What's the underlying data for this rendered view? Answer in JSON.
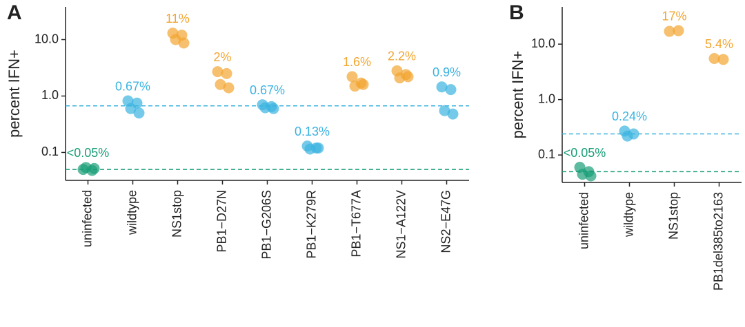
{
  "chart_data": [
    {
      "type": "strip",
      "title": "A",
      "ylabel": "percent IFN+",
      "log_y": true,
      "ylim": [
        0.032,
        38
      ],
      "yticks": [
        0.1,
        {
          "value": 1,
          "label": "1.0"
        },
        {
          "value": 10,
          "label": "10.0"
        }
      ],
      "groups": [
        {
          "category": "uninfected",
          "color": "#1a9e77",
          "values": [
            0.05,
            0.048,
            0.054,
            0.052
          ],
          "annotation": "<0.05%"
        },
        {
          "category": "wildtype",
          "color": "#3bb3e0",
          "values": [
            0.82,
            0.75,
            0.6,
            0.5
          ],
          "annotation": "0.67%"
        },
        {
          "category": "NS1stop",
          "color": "#f2a530",
          "values": [
            13,
            12,
            10,
            8.7
          ],
          "annotation": "11%"
        },
        {
          "category": "PB1−D27N",
          "color": "#f2a530",
          "values": [
            2.7,
            2.5,
            1.6,
            1.4
          ],
          "annotation": "2%"
        },
        {
          "category": "PB1−G206S",
          "color": "#3bb3e0",
          "values": [
            0.7,
            0.65,
            0.62,
            0.6
          ],
          "annotation": "0.67%"
        },
        {
          "category": "PB1−K279R",
          "color": "#3bb3e0",
          "values": [
            0.13,
            0.12,
            0.115,
            0.12
          ],
          "annotation": "0.13%"
        },
        {
          "category": "PB1−T677A",
          "color": "#f2a530",
          "values": [
            2.2,
            1.7,
            1.5,
            1.6
          ],
          "annotation": "1.6%"
        },
        {
          "category": "NS1−A122V",
          "color": "#f2a530",
          "values": [
            2.8,
            2.4,
            2.1,
            2.2
          ],
          "annotation": "2.2%"
        },
        {
          "category": "NS2−E47G",
          "color": "#3bb3e0",
          "values": [
            1.45,
            1.3,
            0.55,
            0.48
          ],
          "annotation": "0.9%"
        }
      ],
      "hlines": [
        {
          "value": 0.67,
          "color": "#3bb3e0"
        },
        {
          "value": 0.05,
          "color": "#1a9e77"
        }
      ]
    },
    {
      "type": "strip",
      "title": "B",
      "ylabel": "percent IFN+",
      "log_y": true,
      "ylim": [
        0.032,
        47
      ],
      "yticks": [
        0.1,
        {
          "value": 1,
          "label": "1.0"
        },
        {
          "value": 10,
          "label": "10.0"
        }
      ],
      "groups": [
        {
          "category": "uninfected",
          "color": "#1a9e77",
          "values": [
            0.06,
            0.05,
            0.045,
            0.042
          ],
          "annotation": "<0.05%"
        },
        {
          "category": "wildtype",
          "color": "#3bb3e0",
          "values": [
            0.27,
            0.24,
            0.22
          ],
          "annotation": "0.24%"
        },
        {
          "category": "NS1stop",
          "color": "#f2a530",
          "values": [
            17,
            17.5
          ],
          "annotation": "17%"
        },
        {
          "category": "PB1del385to2163",
          "color": "#f2a530",
          "values": [
            5.5,
            5.3
          ],
          "annotation": "5.4%"
        }
      ],
      "hlines": [
        {
          "value": 0.24,
          "color": "#3bb3e0"
        },
        {
          "value": 0.05,
          "color": "#1a9e77"
        }
      ]
    }
  ]
}
